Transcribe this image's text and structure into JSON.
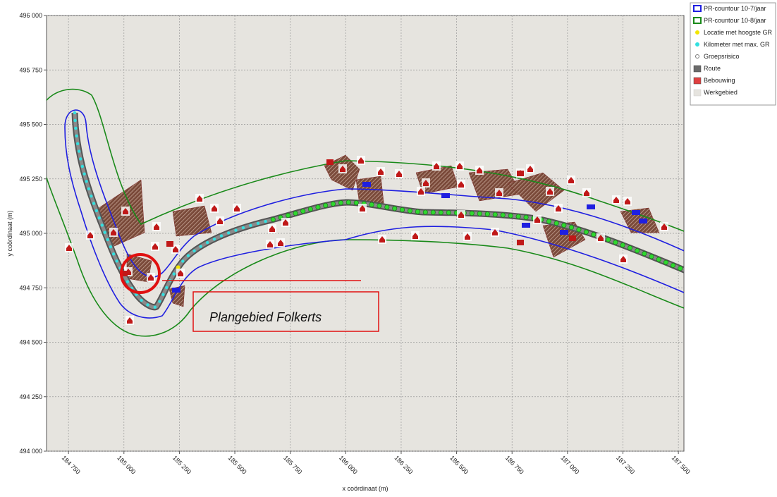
{
  "chart_data": {
    "type": "map",
    "xlabel": "x coördinaat (m)",
    "ylabel": "y coördinaat (m)",
    "xlim": [
      184651,
      187525
    ],
    "ylim": [
      494000,
      496000
    ],
    "xticks": [
      {
        "value": 184750,
        "label": "184 750"
      },
      {
        "value": 185000,
        "label": "185 000"
      },
      {
        "value": 185250,
        "label": "185 250"
      },
      {
        "value": 185500,
        "label": "185 500"
      },
      {
        "value": 185750,
        "label": "185 750"
      },
      {
        "value": 186000,
        "label": "186 000"
      },
      {
        "value": 186250,
        "label": "186 250"
      },
      {
        "value": 186500,
        "label": "186 500"
      },
      {
        "value": 186750,
        "label": "186 750"
      },
      {
        "value": 187000,
        "label": "187 000"
      },
      {
        "value": 187250,
        "label": "187 250"
      },
      {
        "value": 187500,
        "label": "187 500"
      }
    ],
    "yticks": [
      {
        "value": 494000,
        "label": "494 000"
      },
      {
        "value": 494250,
        "label": "494 250"
      },
      {
        "value": 494500,
        "label": "494 500"
      },
      {
        "value": 494750,
        "label": "494 750"
      },
      {
        "value": 495000,
        "label": "495 000"
      },
      {
        "value": 495250,
        "label": "495 250"
      },
      {
        "value": 495500,
        "label": "495 500"
      },
      {
        "value": 495750,
        "label": "495 750"
      },
      {
        "value": 496000,
        "label": "496 000"
      }
    ],
    "grid": true,
    "legend": [
      {
        "name": "PR-countour 10-7/jaar",
        "color": "#1f1fe0"
      },
      {
        "name": "PR-countour 10-8/jaar",
        "color": "#1a8a1a"
      },
      {
        "name": "Locatie met hoogste GR",
        "color": "#f2e600"
      },
      {
        "name": "Kilometer met max. GR",
        "color": "#33e0e0"
      },
      {
        "name": "Groepsrisico",
        "color": "#7a7a7a"
      },
      {
        "name": "Route",
        "color": "#6a6a6a"
      },
      {
        "name": "Bebouwing",
        "color": "#e04040"
      },
      {
        "name": "Werkgebied",
        "color": "#e6e4df"
      }
    ],
    "annotation": "Plangebied Folkerts"
  }
}
